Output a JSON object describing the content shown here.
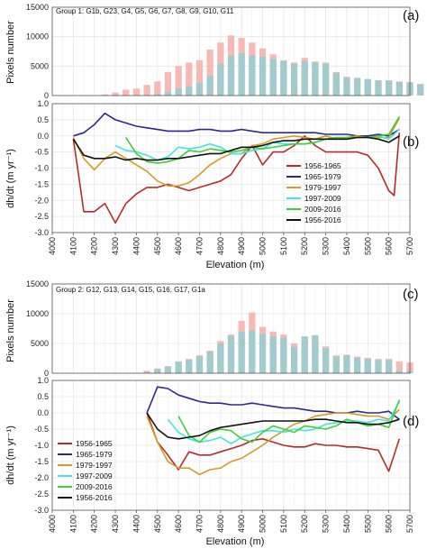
{
  "colors": {
    "pink": "#f5b5b0",
    "teal": "#9ccbcf",
    "cyan_bar": "#8ddde6",
    "grid": "#e6e6e6",
    "frame": "#555555"
  },
  "chart_data": [
    {
      "panel": "(a)",
      "type": "bar",
      "group_label": "Group 1: G1b, G23, G4, G5, G6, G7, G8, G9, G10, G11",
      "ylabel": "Pixels number",
      "ylim": [
        0,
        15000
      ],
      "yticks": [
        0,
        5000,
        10000,
        15000
      ],
      "x_start": 4100,
      "x_step": 50,
      "series": [
        {
          "values": [
            0,
            0,
            0,
            200,
            500,
            1000,
            1200,
            1800,
            2400,
            4000,
            5000,
            5600,
            6000,
            7800,
            9000,
            10200,
            9800,
            9000,
            8000,
            7000,
            6000,
            5600,
            6400,
            5800,
            5600,
            4000,
            3200,
            3000,
            2800,
            2600,
            2600,
            2400,
            2300,
            2000,
            1800
          ]
        },
        {
          "values": [
            0,
            0,
            0,
            0,
            0,
            0,
            0,
            0,
            200,
            600,
            1200,
            1600,
            2200,
            3400,
            5400,
            6800,
            7200,
            6800,
            6600,
            6200,
            5800,
            5400,
            5800,
            5600,
            5400,
            3800,
            3000,
            3000,
            2800,
            2600,
            2600,
            2300,
            2200,
            1900,
            400
          ]
        }
      ]
    },
    {
      "panel": "(b)",
      "type": "line",
      "ylabel": "dh/dt (m yr⁻¹)",
      "xlabel": "Elevation (m)",
      "ylim": [
        -3.0,
        1.0
      ],
      "xlim": [
        4000,
        5700
      ],
      "yticks": [
        "1.0",
        "0.5",
        "0.0",
        "-0.5",
        "-1.0",
        "-1.5",
        "-2.0",
        "-2.5",
        "-3.0"
      ],
      "xticks": [
        "4000",
        "4100",
        "4200",
        "4300",
        "4400",
        "4500",
        "4600",
        "4700",
        "4800",
        "4900",
        "5000",
        "5100",
        "5200",
        "5300",
        "5400",
        "5500",
        "5600",
        "5700"
      ],
      "series": [
        {
          "name": "1956-1965",
          "color": "#b52b27",
          "x": [
            4100,
            4125,
            4150,
            4200,
            4250,
            4300,
            4350,
            4400,
            4450,
            4500,
            4550,
            4600,
            4650,
            4700,
            4750,
            4800,
            4850,
            4900,
            4950,
            5000,
            5050,
            5100,
            5150,
            5200,
            5250,
            5300,
            5350,
            5400,
            5450,
            5500,
            5550,
            5600,
            5625,
            5650
          ],
          "y": [
            -0.1,
            -1.2,
            -2.35,
            -2.35,
            -2.1,
            -2.7,
            -2.1,
            -1.8,
            -1.6,
            -1.6,
            -1.5,
            -1.6,
            -1.7,
            -1.6,
            -1.5,
            -1.4,
            -1.2,
            -0.7,
            -0.3,
            -0.9,
            -0.5,
            -0.5,
            -0.3,
            0.0,
            -0.3,
            -0.5,
            -0.5,
            -0.5,
            -0.5,
            -0.6,
            -1.0,
            -1.7,
            -1.85,
            0.1
          ]
        },
        {
          "name": "1965-1979",
          "color": "#2a2a8f",
          "x": [
            4100,
            4150,
            4200,
            4250,
            4300,
            4350,
            4400,
            4450,
            4500,
            4550,
            4600,
            4650,
            4700,
            4750,
            4800,
            4850,
            4900,
            4950,
            5000,
            5050,
            5100,
            5150,
            5200,
            5250,
            5300,
            5350,
            5400,
            5450,
            5500,
            5550,
            5600,
            5650
          ],
          "y": [
            0.0,
            0.1,
            0.35,
            0.7,
            0.5,
            0.4,
            0.3,
            0.25,
            0.2,
            0.15,
            0.15,
            0.15,
            0.2,
            0.2,
            0.15,
            0.15,
            0.2,
            0.15,
            0.1,
            0.1,
            0.1,
            0.1,
            0.1,
            0.1,
            0.05,
            0.05,
            0.05,
            0.0,
            0.0,
            0.05,
            0.0,
            0.2
          ]
        },
        {
          "name": "1979-1997",
          "color": "#d89a2a",
          "x": [
            4100,
            4150,
            4200,
            4250,
            4300,
            4350,
            4400,
            4450,
            4500,
            4550,
            4600,
            4650,
            4700,
            4750,
            4800,
            4850,
            4900,
            4950,
            5000,
            5050,
            5100,
            5150,
            5200,
            5250,
            5300,
            5350,
            5400,
            5450,
            5500,
            5550,
            5600,
            5650
          ],
          "y": [
            -0.05,
            -0.7,
            -1.05,
            -0.7,
            -0.5,
            -0.7,
            -0.9,
            -1.1,
            -1.4,
            -1.55,
            -1.55,
            -1.45,
            -1.2,
            -0.9,
            -0.7,
            -0.55,
            -0.55,
            -0.3,
            -0.25,
            -0.1,
            -0.05,
            0.0,
            -0.05,
            -0.1,
            0.0,
            -0.1,
            -0.05,
            0.0,
            -0.05,
            -0.05,
            -0.05,
            0.55
          ]
        },
        {
          "name": "1997-2009",
          "color": "#3ee8e0",
          "x": [
            4300,
            4350,
            4400,
            4450,
            4500,
            4550,
            4600,
            4650,
            4700,
            4750,
            4800,
            4850,
            4900,
            4950,
            5000,
            5050,
            5100,
            5150,
            5200,
            5250,
            5300,
            5350,
            5400,
            5450,
            5500,
            5550,
            5600,
            5650
          ],
          "y": [
            -0.3,
            -0.45,
            -0.5,
            -0.6,
            -0.75,
            -0.65,
            -0.35,
            -0.4,
            -0.35,
            -0.25,
            -0.35,
            -0.55,
            -0.55,
            -0.45,
            -0.4,
            -0.2,
            -0.25,
            -0.25,
            -0.25,
            -0.2,
            -0.1,
            -0.1,
            -0.1,
            -0.05,
            -0.05,
            0.0,
            -0.1,
            0.2
          ]
        },
        {
          "name": "2009-2016",
          "color": "#3fcf39",
          "x": [
            4350,
            4400,
            4450,
            4500,
            4550,
            4600,
            4650,
            4700,
            4750,
            4800,
            4850,
            4900,
            4950,
            5000,
            5050,
            5100,
            5150,
            5200,
            5250,
            5300,
            5350,
            5400,
            5450,
            5500,
            5550,
            5600,
            5650
          ],
          "y": [
            -0.05,
            -0.55,
            -0.8,
            -0.85,
            -0.8,
            -0.7,
            -0.45,
            -0.5,
            -0.4,
            -0.45,
            -0.5,
            -0.45,
            -0.35,
            -0.4,
            -0.35,
            -0.3,
            -0.25,
            -0.25,
            -0.2,
            -0.1,
            -0.05,
            -0.05,
            -0.05,
            -0.05,
            0.0,
            0.05,
            0.6
          ]
        },
        {
          "name": "1956-2016",
          "color": "#111111",
          "x": [
            4100,
            4150,
            4200,
            4250,
            4300,
            4350,
            4400,
            4450,
            4500,
            4550,
            4600,
            4650,
            4700,
            4750,
            4800,
            4850,
            4900,
            4950,
            5000,
            5050,
            5100,
            5150,
            5200,
            5250,
            5300,
            5350,
            5400,
            5450,
            5500,
            5550,
            5600,
            5650
          ],
          "y": [
            -0.1,
            -0.6,
            -0.7,
            -0.7,
            -0.65,
            -0.75,
            -0.7,
            -0.75,
            -0.75,
            -0.7,
            -0.7,
            -0.65,
            -0.6,
            -0.55,
            -0.55,
            -0.45,
            -0.35,
            -0.35,
            -0.3,
            -0.2,
            -0.15,
            -0.15,
            -0.1,
            -0.1,
            -0.1,
            -0.1,
            -0.1,
            -0.05,
            -0.05,
            -0.1,
            -0.2,
            0.0
          ]
        }
      ]
    },
    {
      "panel": "(c)",
      "type": "bar",
      "group_label": "Group 2: G12, G13, G14, G15, G16, G17, G1a",
      "ylabel": "Pixels number",
      "ylim": [
        0,
        15000
      ],
      "yticks": [
        0,
        5000,
        10000,
        15000
      ],
      "x_start": 4450,
      "x_step": 50,
      "series": [
        {
          "values": [
            400,
            800,
            1200,
            2000,
            2400,
            3000,
            3800,
            5400,
            6500,
            8800,
            10200,
            7800,
            7000,
            6500,
            5000,
            5600,
            6000,
            4500,
            3000,
            3100,
            2800,
            2600,
            2400,
            2400,
            2000,
            1800
          ]
        },
        {
          "values": [
            200,
            700,
            1100,
            1900,
            2300,
            2900,
            3600,
            5000,
            6200,
            7000,
            7200,
            6600,
            6200,
            6000,
            4400,
            6200,
            6400,
            4200,
            2800,
            3000,
            2600,
            2400,
            2200,
            2200,
            400,
            400
          ]
        }
      ]
    },
    {
      "panel": "(d)",
      "type": "line",
      "ylabel": "dh/dt (m yr⁻¹)",
      "xlabel": "Elevation (m)",
      "ylim": [
        -3.0,
        1.0
      ],
      "xlim": [
        4000,
        5700
      ],
      "yticks": [
        "1.0",
        "0.5",
        "0.0",
        "-0.5",
        "-1.0",
        "-1.5",
        "-2.0",
        "-2.5",
        "-3.0"
      ],
      "xticks": [
        "4000",
        "4100",
        "4200",
        "4300",
        "4400",
        "4500",
        "4600",
        "4700",
        "4800",
        "4900",
        "5000",
        "5100",
        "5200",
        "5300",
        "5400",
        "5500",
        "5600",
        "5700"
      ],
      "series": [
        {
          "name": "1956-1965",
          "color": "#b52b27",
          "x": [
            4450,
            4500,
            4550,
            4600,
            4650,
            4700,
            4750,
            4800,
            4850,
            4900,
            4950,
            5000,
            5050,
            5100,
            5150,
            5200,
            5250,
            5300,
            5350,
            5400,
            5450,
            5500,
            5550,
            5600,
            5650
          ],
          "y": [
            0.0,
            -0.9,
            -1.3,
            -1.75,
            -1.2,
            -1.3,
            -1.3,
            -1.2,
            -1.1,
            -1.0,
            -0.85,
            -0.8,
            -0.9,
            -1.0,
            -1.05,
            -1.05,
            -0.95,
            -1.0,
            -1.0,
            -1.05,
            -1.05,
            -1.1,
            -1.15,
            -1.8,
            -0.8
          ]
        },
        {
          "name": "1965-1979",
          "color": "#2a2a8f",
          "x": [
            4450,
            4500,
            4550,
            4600,
            4650,
            4700,
            4750,
            4800,
            4850,
            4900,
            4950,
            5000,
            5050,
            5100,
            5150,
            5200,
            5250,
            5300,
            5350,
            5400,
            5450,
            5500,
            5550,
            5600,
            5650
          ],
          "y": [
            0.0,
            0.8,
            0.75,
            0.55,
            0.45,
            0.35,
            0.3,
            0.3,
            0.25,
            0.25,
            0.3,
            0.25,
            0.2,
            0.15,
            0.15,
            0.1,
            0.05,
            0.05,
            0.0,
            0.0,
            0.05,
            0.0,
            0.0,
            0.05,
            -0.2
          ]
        },
        {
          "name": "1979-1997",
          "color": "#d89a2a",
          "x": [
            4450,
            4500,
            4550,
            4600,
            4650,
            4700,
            4750,
            4800,
            4850,
            4900,
            4950,
            5000,
            5050,
            5100,
            5150,
            5200,
            5250,
            5300,
            5350,
            5400,
            5450,
            5500,
            5550,
            5600,
            5650
          ],
          "y": [
            -0.1,
            -0.9,
            -1.5,
            -1.7,
            -1.7,
            -1.9,
            -1.75,
            -1.7,
            -1.5,
            -1.4,
            -1.2,
            -1.0,
            -0.75,
            -0.55,
            -0.35,
            -0.25,
            -0.1,
            -0.05,
            0.0,
            0.0,
            -0.05,
            -0.1,
            -0.1,
            -0.2,
            0.1
          ]
        },
        {
          "name": "1997-2009",
          "color": "#3ee8e0",
          "x": [
            4550,
            4600,
            4650,
            4700,
            4750,
            4800,
            4850,
            4900,
            4950,
            5000,
            5050,
            5100,
            5150,
            5200,
            5250,
            5300,
            5350,
            5400,
            5450,
            5500,
            5550,
            5600,
            5650
          ],
          "y": [
            -0.2,
            -0.6,
            -0.8,
            -0.9,
            -0.85,
            -0.75,
            -0.95,
            -0.75,
            -0.65,
            -0.55,
            -0.55,
            -0.6,
            -0.5,
            -0.55,
            -0.5,
            -0.35,
            -0.3,
            -0.25,
            -0.25,
            -0.3,
            -0.2,
            -0.25,
            0.35
          ]
        },
        {
          "name": "2009-2016",
          "color": "#3fcf39",
          "x": [
            4600,
            4650,
            4700,
            4750,
            4800,
            4850,
            4900,
            4950,
            5000,
            5050,
            5100,
            5150,
            5200,
            5250,
            5300,
            5350,
            5400,
            5450,
            5500,
            5550,
            5600,
            5650
          ],
          "y": [
            -0.1,
            -0.7,
            -0.9,
            -0.6,
            -0.5,
            -0.55,
            -0.8,
            -0.9,
            -0.6,
            -0.4,
            -0.5,
            -0.6,
            -0.4,
            -0.45,
            -0.5,
            -0.4,
            -0.2,
            -0.3,
            -0.4,
            -0.35,
            -0.45,
            0.4
          ]
        },
        {
          "name": "1956-2016",
          "color": "#111111",
          "x": [
            4450,
            4500,
            4550,
            4600,
            4650,
            4700,
            4750,
            4800,
            4850,
            4900,
            4950,
            5000,
            5050,
            5100,
            5150,
            5200,
            5250,
            5300,
            5350,
            5400,
            5450,
            5500,
            5550,
            5600,
            5650
          ],
          "y": [
            0.0,
            -0.5,
            -0.75,
            -0.8,
            -0.75,
            -0.7,
            -0.55,
            -0.45,
            -0.4,
            -0.35,
            -0.3,
            -0.25,
            -0.25,
            -0.25,
            -0.25,
            -0.25,
            -0.2,
            -0.2,
            -0.25,
            -0.3,
            -0.3,
            -0.35,
            -0.35,
            -0.3,
            -0.2
          ]
        }
      ]
    }
  ]
}
